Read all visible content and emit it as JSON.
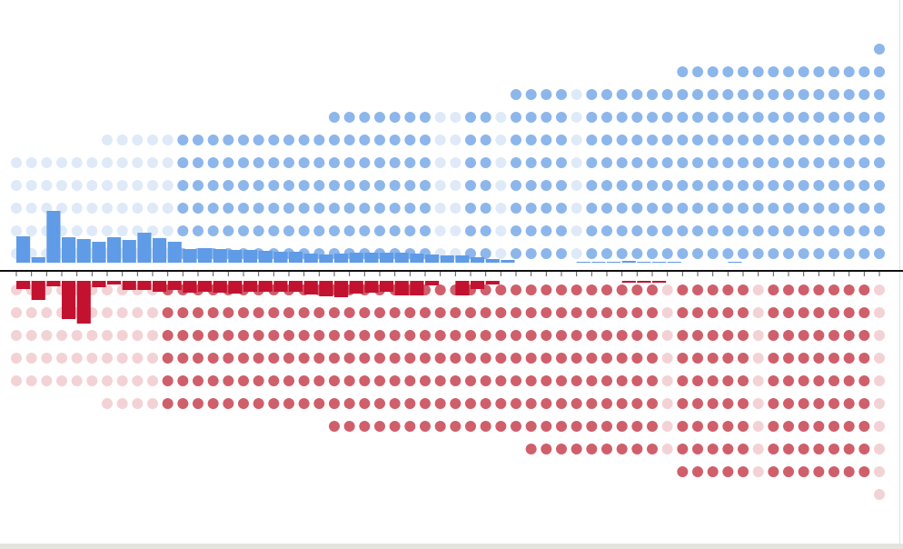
{
  "chart_data": {
    "type": "dot-bar",
    "dots_above": [
      5,
      5,
      5,
      5,
      5,
      5,
      6,
      6,
      6,
      6,
      6,
      6,
      6,
      6,
      6,
      6,
      6,
      6,
      6,
      6,
      6,
      7,
      7,
      7,
      7,
      7,
      7,
      7,
      7,
      7,
      7,
      7,
      7,
      8,
      8,
      8,
      8,
      8,
      8,
      8,
      8,
      8,
      8,
      8,
      9,
      9,
      9,
      9,
      9,
      9,
      9,
      9,
      9,
      9,
      9,
      9,
      9,
      10
    ],
    "faded_above": [
      true,
      true,
      true,
      true,
      true,
      true,
      true,
      true,
      true,
      true,
      true,
      false,
      false,
      false,
      false,
      false,
      false,
      false,
      false,
      false,
      false,
      false,
      false,
      false,
      false,
      false,
      false,
      false,
      true,
      true,
      false,
      false,
      true,
      false,
      false,
      false,
      false,
      true,
      false,
      false,
      false,
      false,
      false,
      false,
      false,
      false,
      false,
      false,
      false,
      false,
      false,
      false,
      false,
      false,
      false,
      false,
      false,
      false
    ],
    "dots_below": [
      5,
      5,
      5,
      5,
      5,
      5,
      6,
      6,
      6,
      6,
      6,
      6,
      6,
      6,
      6,
      6,
      6,
      6,
      6,
      6,
      6,
      7,
      7,
      7,
      7,
      7,
      7,
      7,
      7,
      7,
      7,
      7,
      7,
      7,
      8,
      8,
      8,
      8,
      8,
      8,
      8,
      8,
      8,
      8,
      9,
      9,
      9,
      9,
      9,
      9,
      9,
      9,
      9,
      9,
      9,
      9,
      9,
      10
    ],
    "faded_below": [
      true,
      true,
      true,
      true,
      true,
      true,
      true,
      true,
      true,
      true,
      false,
      false,
      false,
      false,
      false,
      false,
      false,
      false,
      false,
      false,
      false,
      false,
      false,
      false,
      false,
      false,
      false,
      false,
      false,
      false,
      false,
      false,
      false,
      false,
      false,
      false,
      false,
      false,
      false,
      false,
      false,
      false,
      false,
      true,
      false,
      false,
      false,
      false,
      false,
      true,
      false,
      false,
      false,
      false,
      false,
      false,
      false,
      true
    ],
    "bars_above": [
      29,
      6,
      57,
      28,
      26,
      23,
      28,
      25,
      33,
      27,
      23,
      15,
      16,
      15,
      14,
      14,
      13,
      12,
      12,
      10,
      9,
      10,
      11,
      11,
      11,
      11,
      10,
      9,
      8,
      8,
      6,
      4,
      3,
      0,
      0,
      0,
      0,
      1,
      1,
      1,
      2,
      1,
      1,
      1,
      0,
      0,
      0,
      1,
      0,
      0,
      0,
      0,
      0,
      0,
      0,
      0,
      0,
      0
    ],
    "bars_below": [
      9,
      21,
      6,
      42,
      47,
      7,
      4,
      10,
      10,
      12,
      10,
      13,
      12,
      13,
      14,
      12,
      12,
      12,
      12,
      15,
      17,
      18,
      14,
      13,
      12,
      16,
      16,
      5,
      0,
      16,
      9,
      4,
      0,
      0,
      0,
      0,
      0,
      0,
      0,
      0,
      2,
      2,
      2,
      0,
      0,
      0,
      0,
      0,
      0,
      0,
      0,
      0,
      0,
      0,
      0,
      0,
      0,
      0
    ],
    "colors": {
      "dot_above": "#8db6eb",
      "dot_above_faded": "#dfeaf8",
      "bar_above": "#5f9be6",
      "dot_below": "#cf5f6b",
      "dot_below_faded": "#f3d2d5",
      "bar_below": "#c2122f"
    }
  }
}
